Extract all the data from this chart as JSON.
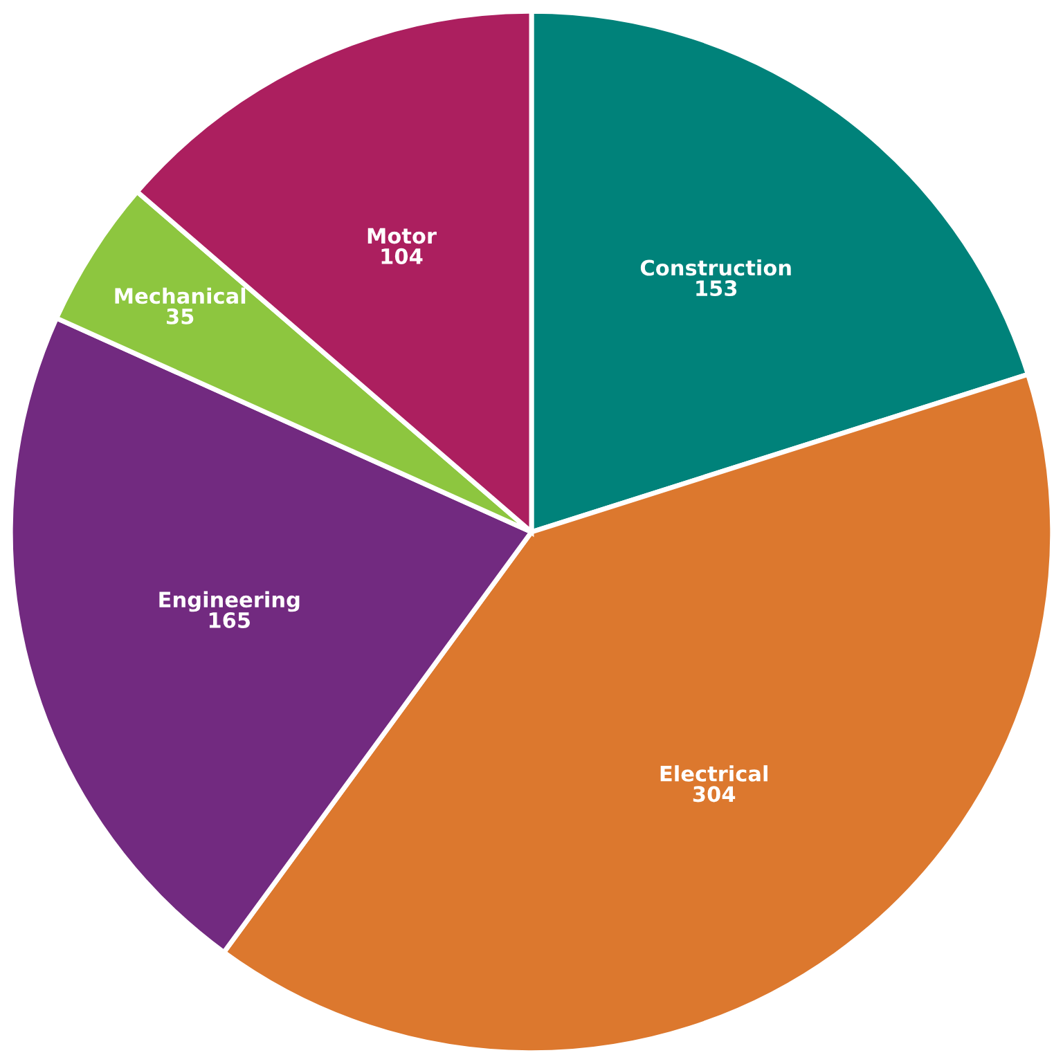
{
  "chart_data": {
    "type": "pie",
    "categories": [
      "Construction",
      "Electrical",
      "Engineering",
      "Mechanical",
      "Motor"
    ],
    "values": [
      153,
      304,
      165,
      35,
      104
    ],
    "colors": [
      "#00827a",
      "#dc782e",
      "#722a80",
      "#8dc63f",
      "#ac1f5f"
    ],
    "data_labels": true
  }
}
